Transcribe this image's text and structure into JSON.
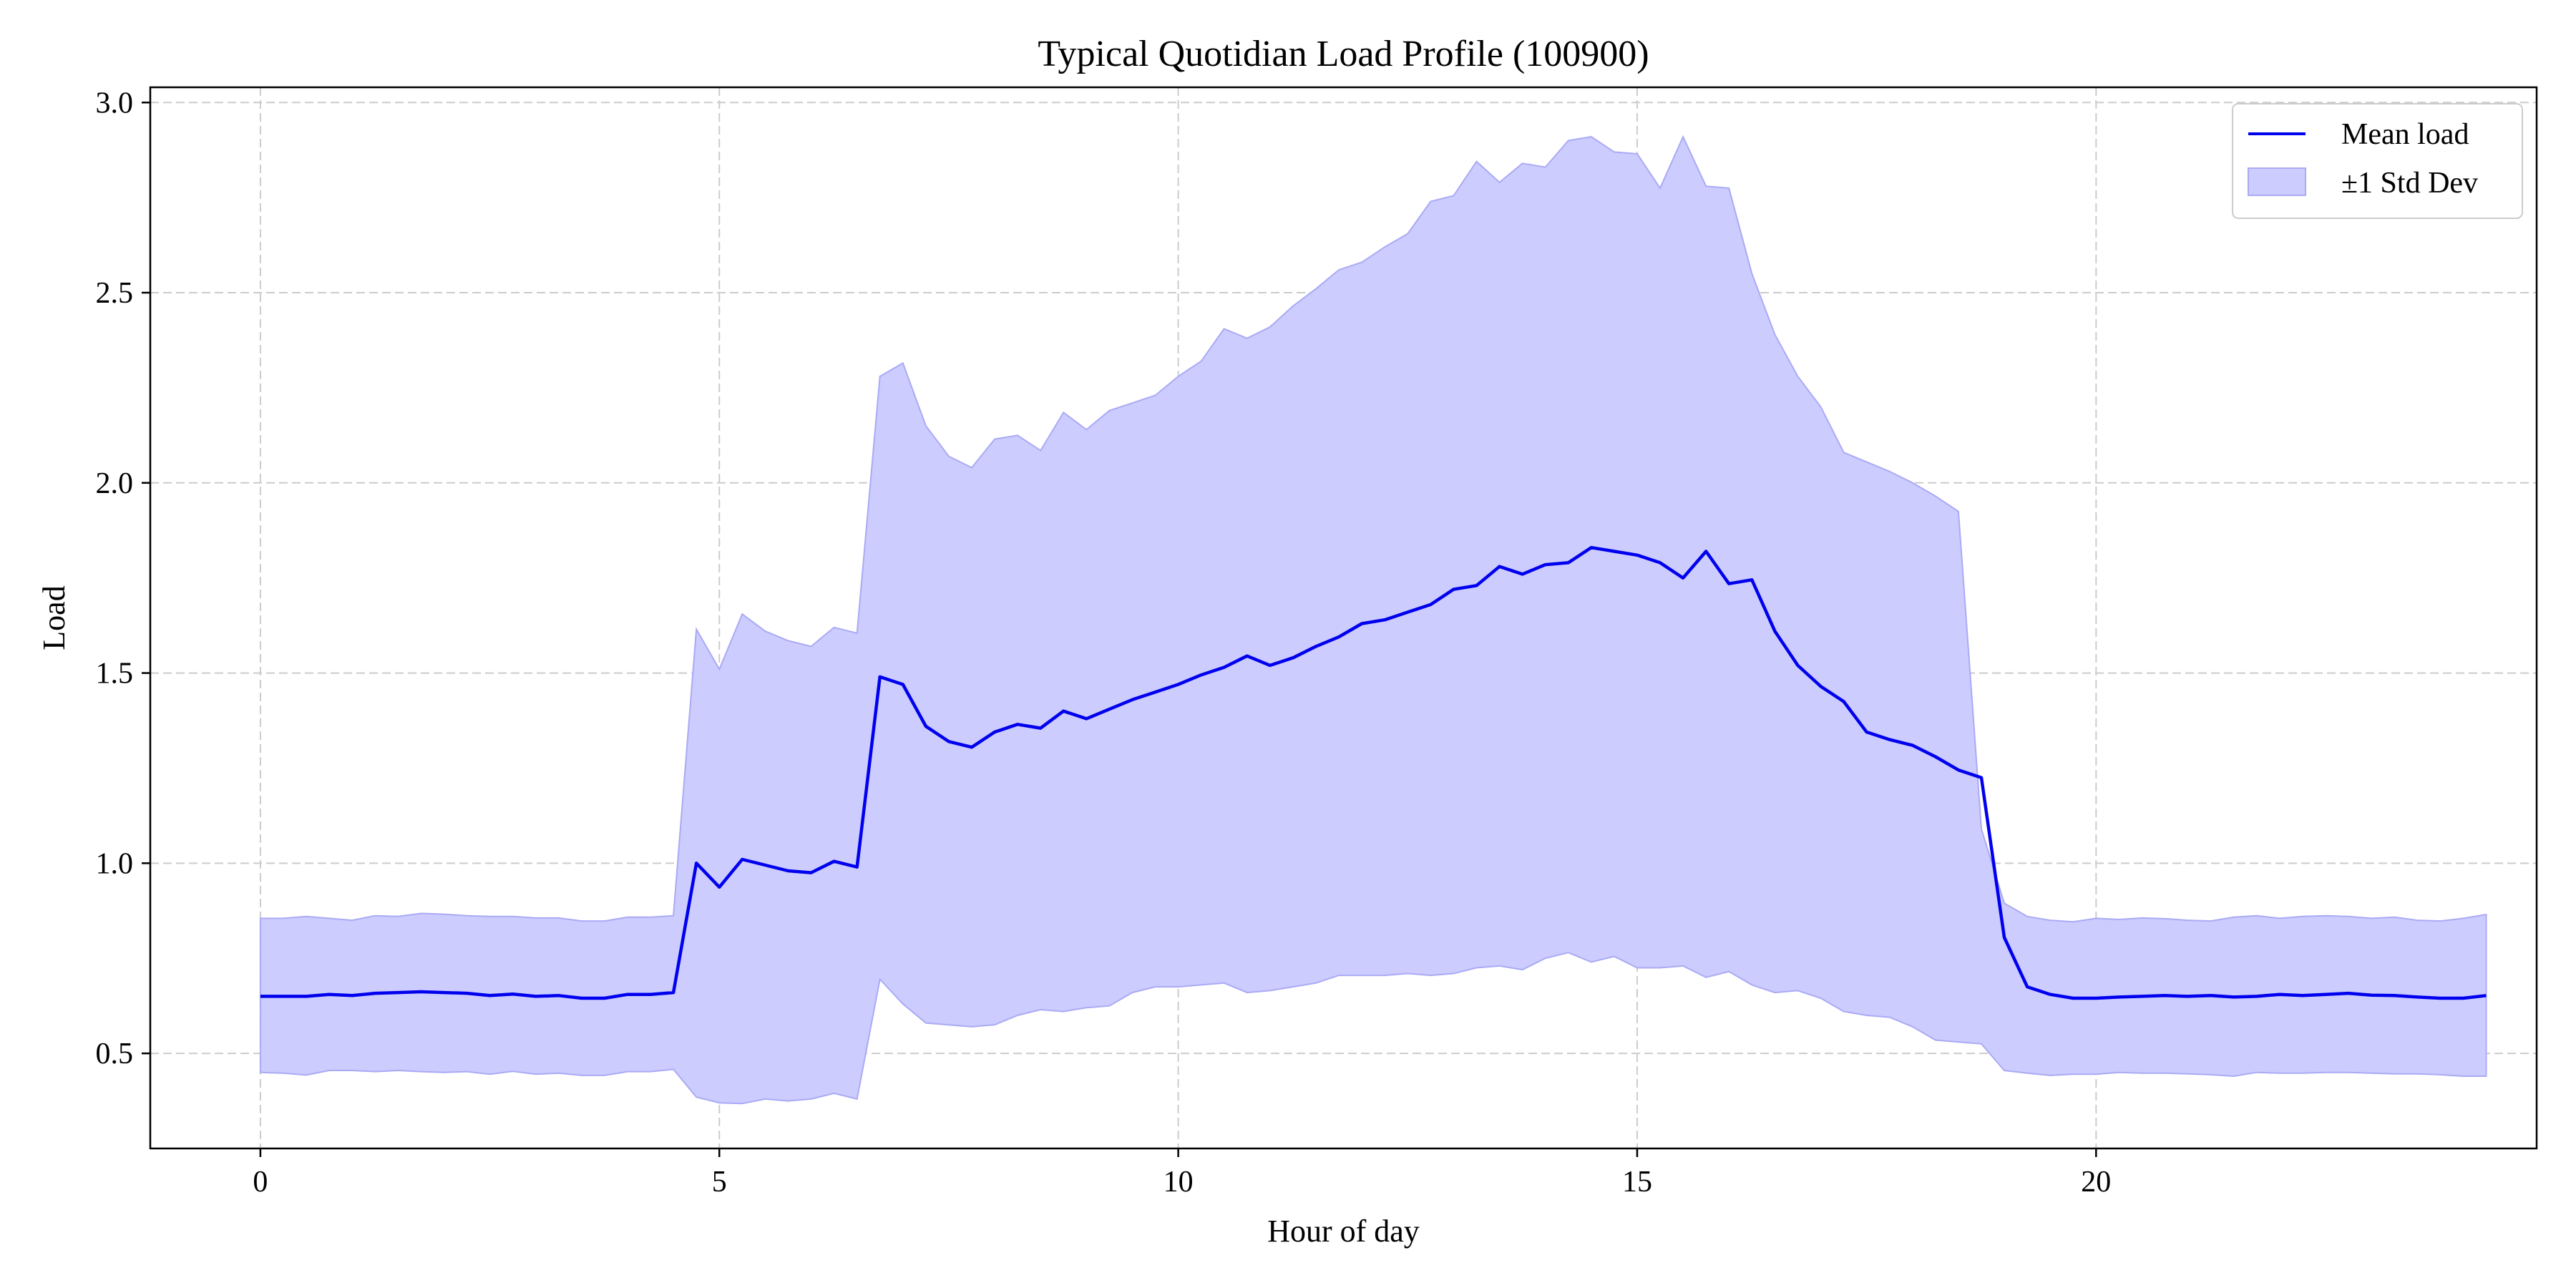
{
  "chart_data": {
    "type": "line",
    "title": "Typical Quotidian Load Profile (100900)",
    "xlabel": "Hour of day",
    "ylabel": "Load",
    "xlim": [
      -1.2,
      24.8
    ],
    "ylim": [
      0.25,
      3.04
    ],
    "xticks": [
      0,
      5,
      10,
      15,
      20
    ],
    "yticks": [
      0.5,
      1.0,
      1.5,
      2.0,
      2.5,
      3.0
    ],
    "xtick_labels": [
      "0",
      "5",
      "10",
      "15",
      "20"
    ],
    "ytick_labels": [
      "0.5",
      "1.0",
      "1.5",
      "2.0",
      "2.5",
      "3.0"
    ],
    "grid": true,
    "legend_position": "top-right",
    "colors": {
      "line": "#0000ee",
      "band": "#ccccff",
      "band_edge": "#aaaaf5"
    },
    "x_step_hours": 0.25,
    "series": [
      {
        "name": "Mean load",
        "values": [
          0.65,
          0.65,
          0.65,
          0.655,
          0.652,
          0.658,
          0.66,
          0.662,
          0.66,
          0.658,
          0.652,
          0.656,
          0.65,
          0.652,
          0.645,
          0.645,
          0.655,
          0.655,
          0.66,
          1.0,
          0.937,
          1.01,
          0.995,
          0.98,
          0.975,
          1.005,
          0.99,
          1.49,
          1.47,
          1.36,
          1.32,
          1.305,
          1.345,
          1.365,
          1.355,
          1.4,
          1.38,
          1.405,
          1.43,
          1.45,
          1.47,
          1.495,
          1.515,
          1.545,
          1.52,
          1.54,
          1.57,
          1.595,
          1.63,
          1.64,
          1.66,
          1.68,
          1.72,
          1.73,
          1.78,
          1.76,
          1.785,
          1.79,
          1.83,
          1.82,
          1.81,
          1.79,
          1.75,
          1.82,
          1.735,
          1.745,
          1.61,
          1.52,
          1.465,
          1.425,
          1.345,
          1.325,
          1.31,
          1.28,
          1.245,
          1.225,
          0.805,
          0.675,
          0.655,
          0.645,
          0.645,
          0.648,
          0.65,
          0.652,
          0.65,
          0.652,
          0.648,
          0.65,
          0.655,
          0.652,
          0.655,
          0.658,
          0.653,
          0.652,
          0.648,
          0.645,
          0.645,
          0.652
        ]
      },
      {
        "name": "±1 Std Dev",
        "upper": [
          0.855,
          0.855,
          0.86,
          0.855,
          0.85,
          0.862,
          0.86,
          0.868,
          0.866,
          0.862,
          0.86,
          0.86,
          0.856,
          0.856,
          0.848,
          0.848,
          0.858,
          0.858,
          0.862,
          1.615,
          1.51,
          1.655,
          1.61,
          1.585,
          1.57,
          1.62,
          1.605,
          2.28,
          2.315,
          2.15,
          2.07,
          2.04,
          2.115,
          2.125,
          2.085,
          2.185,
          2.14,
          2.19,
          2.21,
          2.23,
          2.28,
          2.32,
          2.405,
          2.38,
          2.41,
          2.465,
          2.51,
          2.56,
          2.58,
          2.62,
          2.655,
          2.74,
          2.755,
          2.845,
          2.79,
          2.84,
          2.83,
          2.9,
          2.91,
          2.87,
          2.865,
          2.775,
          2.91,
          2.78,
          2.775,
          2.55,
          2.39,
          2.28,
          2.2,
          2.08,
          2.055,
          2.03,
          2.0,
          1.965,
          1.925,
          1.09,
          0.895,
          0.86,
          0.85,
          0.846,
          0.855,
          0.852,
          0.856,
          0.854,
          0.85,
          0.848,
          0.858,
          0.862,
          0.855,
          0.86,
          0.862,
          0.86,
          0.855,
          0.858,
          0.85,
          0.848,
          0.855,
          0.865
        ],
        "lower": [
          0.45,
          0.448,
          0.443,
          0.455,
          0.455,
          0.452,
          0.455,
          0.452,
          0.45,
          0.452,
          0.445,
          0.453,
          0.445,
          0.448,
          0.442,
          0.442,
          0.452,
          0.452,
          0.458,
          0.385,
          0.37,
          0.368,
          0.38,
          0.375,
          0.38,
          0.395,
          0.38,
          0.695,
          0.63,
          0.58,
          0.575,
          0.57,
          0.575,
          0.6,
          0.615,
          0.61,
          0.62,
          0.625,
          0.66,
          0.675,
          0.675,
          0.68,
          0.685,
          0.66,
          0.665,
          0.675,
          0.685,
          0.705,
          0.705,
          0.705,
          0.71,
          0.705,
          0.71,
          0.725,
          0.73,
          0.72,
          0.75,
          0.765,
          0.74,
          0.755,
          0.725,
          0.725,
          0.73,
          0.7,
          0.715,
          0.68,
          0.66,
          0.665,
          0.645,
          0.61,
          0.6,
          0.595,
          0.57,
          0.535,
          0.53,
          0.525,
          0.455,
          0.448,
          0.442,
          0.445,
          0.445,
          0.45,
          0.448,
          0.448,
          0.446,
          0.444,
          0.44,
          0.45,
          0.448,
          0.448,
          0.45,
          0.45,
          0.448,
          0.446,
          0.446,
          0.444,
          0.44,
          0.44
        ]
      }
    ]
  }
}
